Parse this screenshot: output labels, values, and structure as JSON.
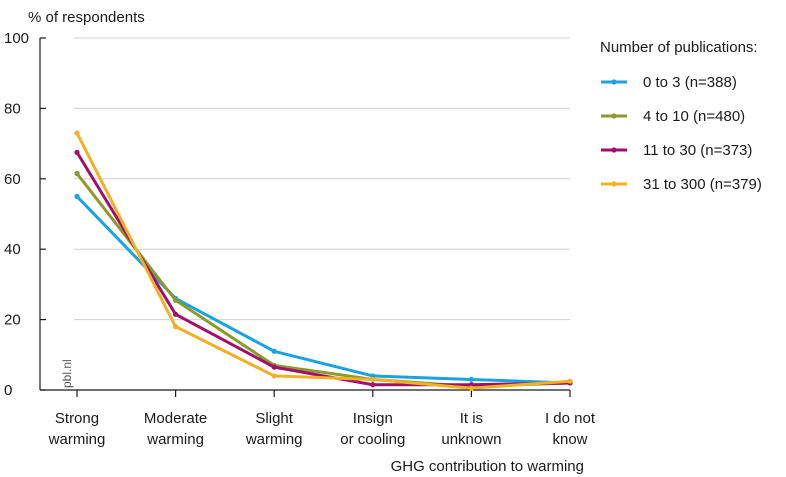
{
  "chart_data": {
    "type": "line",
    "ylabel": "% of respondents",
    "xlabel": "GHG contribution to warming",
    "ylim": [
      0,
      100
    ],
    "yticks": [
      0,
      20,
      40,
      60,
      80,
      100
    ],
    "grid": true,
    "legend_placement": "top-right",
    "legend_title": "Number of publications:",
    "categories": [
      [
        "Strong",
        "warming"
      ],
      [
        "Moderate",
        "warming"
      ],
      [
        "Slight",
        "warming"
      ],
      [
        "Insign",
        "or cooling"
      ],
      [
        "It is",
        "unknown"
      ],
      [
        "I do not",
        "know"
      ]
    ],
    "series": [
      {
        "name": "0 to 3 (n=388)",
        "color": "#1aa3dc",
        "values": [
          55,
          26,
          11,
          4,
          3,
          2
        ]
      },
      {
        "name": "4 to 10 (n=480)",
        "color": "#8b9a2a",
        "values": [
          61.5,
          25.5,
          7,
          3,
          1,
          2
        ]
      },
      {
        "name": "11 to 30 (n=373)",
        "color": "#a0106b",
        "values": [
          67.5,
          21.5,
          6.5,
          1.5,
          1.5,
          2
        ]
      },
      {
        "name": "31 to 300 (n=379)",
        "color": "#f0b124",
        "values": [
          73,
          18,
          4,
          3,
          0.5,
          2.5
        ]
      }
    ],
    "watermark": "pbl.nl"
  }
}
